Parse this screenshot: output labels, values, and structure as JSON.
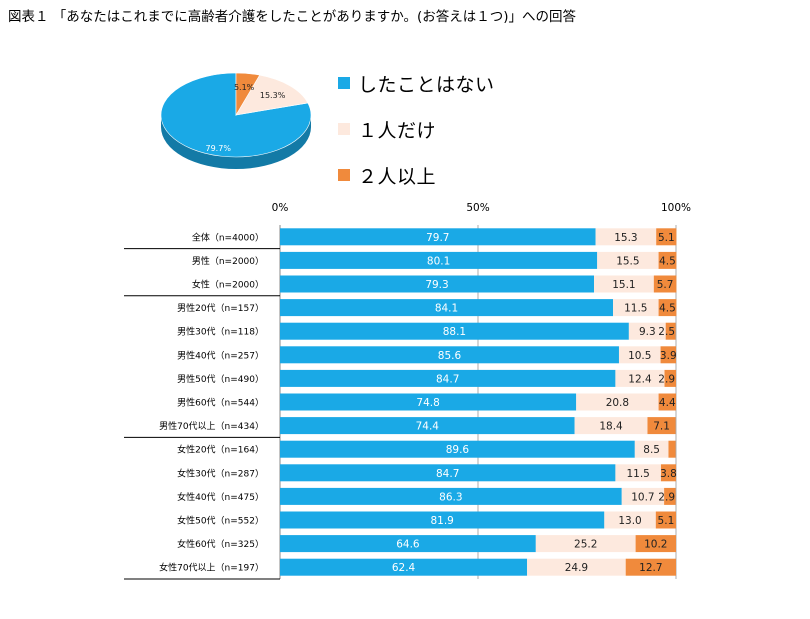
{
  "title": "図表１ 「あなたはこれまでに高齢者介護をしたことがありますか。(お答えは１つ)」への回答",
  "colors": {
    "none": "#1aa9e6",
    "one": "#fde9de",
    "two": "#f08a3c"
  },
  "chart_data": [
    {
      "type": "pie",
      "slices": [
        {
          "key": "none",
          "label": "したことはない",
          "value": 79.7,
          "value_label": "79.7%"
        },
        {
          "key": "one",
          "label": "１人だけ",
          "value": 15.3,
          "value_label": "15.3%"
        },
        {
          "key": "two",
          "label": "２人以上",
          "value": 5.1,
          "value_label": "5.1%"
        }
      ],
      "legend": [
        "したことはない",
        "１人だけ",
        "２人以上"
      ]
    },
    {
      "type": "bar",
      "orientation": "horizontal-stacked-100",
      "x_ticks": [
        "0%",
        "50%",
        "100%"
      ],
      "xlim": [
        0,
        100
      ],
      "series": [
        {
          "key": "none",
          "name": "したことはない"
        },
        {
          "key": "one",
          "name": "１人だけ"
        },
        {
          "key": "two",
          "name": "２人以上"
        }
      ],
      "rows": [
        {
          "label": "全体（n=4000）",
          "values": [
            79.7,
            15.3,
            5.1
          ],
          "value_labels": [
            "79.7",
            "15.3",
            "5.1"
          ],
          "group_start": false
        },
        {
          "label": "男性（n=2000）",
          "values": [
            80.1,
            15.5,
            4.5
          ],
          "value_labels": [
            "80.1",
            "15.5",
            "4.5"
          ],
          "group_start": true
        },
        {
          "label": "女性（n=2000）",
          "values": [
            79.3,
            15.1,
            5.7
          ],
          "value_labels": [
            "79.3",
            "15.1",
            "5.7"
          ],
          "group_start": false
        },
        {
          "label": "男性20代（n=157）",
          "values": [
            84.1,
            11.5,
            4.5
          ],
          "value_labels": [
            "84.1",
            "11.5",
            "4.5"
          ],
          "group_start": true
        },
        {
          "label": "男性30代（n=118）",
          "values": [
            88.1,
            9.3,
            2.5
          ],
          "value_labels": [
            "88.1",
            "9.3",
            "2.5"
          ],
          "group_start": false
        },
        {
          "label": "男性40代（n=257）",
          "values": [
            85.6,
            10.5,
            3.9
          ],
          "value_labels": [
            "85.6",
            "10.5",
            "3.9"
          ],
          "group_start": false
        },
        {
          "label": "男性50代（n=490）",
          "values": [
            84.7,
            12.4,
            2.9
          ],
          "value_labels": [
            "84.7",
            "12.4",
            "2.9"
          ],
          "group_start": false
        },
        {
          "label": "男性60代（n=544）",
          "values": [
            74.8,
            20.8,
            4.4
          ],
          "value_labels": [
            "74.8",
            "20.8",
            "4.4"
          ],
          "group_start": false
        },
        {
          "label": "男性70代以上（n=434）",
          "values": [
            74.4,
            18.4,
            7.1
          ],
          "value_labels": [
            "74.4",
            "18.4",
            "7.1"
          ],
          "group_start": false
        },
        {
          "label": "女性20代（n=164）",
          "values": [
            89.6,
            8.5,
            1.8
          ],
          "value_labels": [
            "89.6",
            "8.5",
            ""
          ],
          "group_start": true
        },
        {
          "label": "女性30代（n=287）",
          "values": [
            84.7,
            11.5,
            3.8
          ],
          "value_labels": [
            "84.7",
            "11.5",
            "3.8"
          ],
          "group_start": false
        },
        {
          "label": "女性40代（n=475）",
          "values": [
            86.3,
            10.7,
            2.9
          ],
          "value_labels": [
            "86.3",
            "10.7",
            "2.9"
          ],
          "group_start": false
        },
        {
          "label": "女性50代（n=552）",
          "values": [
            81.9,
            13.0,
            5.1
          ],
          "value_labels": [
            "81.9",
            "13.0",
            "5.1"
          ],
          "group_start": false
        },
        {
          "label": "女性60代（n=325）",
          "values": [
            64.6,
            25.2,
            10.2
          ],
          "value_labels": [
            "64.6",
            "25.2",
            "10.2"
          ],
          "group_start": false
        },
        {
          "label": "女性70代以上（n=197）",
          "values": [
            62.4,
            24.9,
            12.7
          ],
          "value_labels": [
            "62.4",
            "24.9",
            "12.7"
          ],
          "group_start": false
        }
      ]
    }
  ]
}
